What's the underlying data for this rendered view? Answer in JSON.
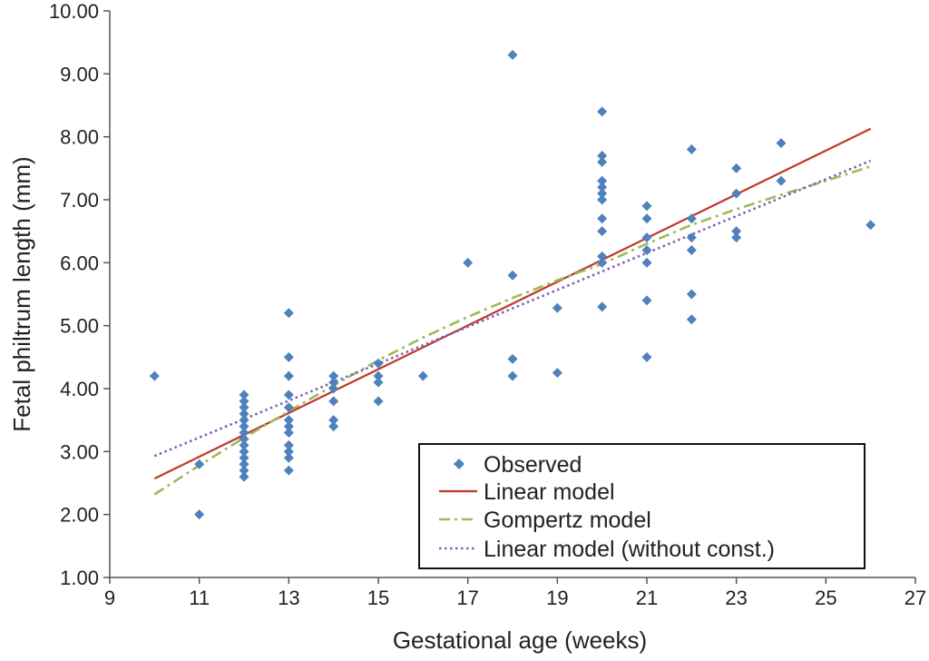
{
  "chart_data": {
    "type": "scatter",
    "xlabel": "Gestational age (weeks)",
    "ylabel": "Fetal philtrum length (mm)",
    "xlim": [
      9,
      27
    ],
    "ylim": [
      1.0,
      10.0
    ],
    "x_ticks": [
      "9",
      "11",
      "13",
      "15",
      "17",
      "19",
      "21",
      "23",
      "25",
      "27"
    ],
    "y_ticks": [
      "1.00",
      "2.00",
      "3.00",
      "4.00",
      "5.00",
      "6.00",
      "7.00",
      "8.00",
      "9.00",
      "10.00"
    ],
    "grid": false,
    "legend_position": "bottom-right",
    "colors": {
      "observed": "#4f81bd",
      "linear": "#c0392b",
      "gompertz": "#9bbb59",
      "linear_no_const": "#7f62b3"
    },
    "series": [
      {
        "name": "Observed",
        "kind": "points",
        "points": [
          [
            10,
            4.2
          ],
          [
            11,
            2.8
          ],
          [
            11,
            2.0
          ],
          [
            12,
            3.9
          ],
          [
            12,
            3.8
          ],
          [
            12,
            3.7
          ],
          [
            12,
            3.6
          ],
          [
            12,
            3.5
          ],
          [
            12,
            3.4
          ],
          [
            12,
            3.3
          ],
          [
            12,
            3.2
          ],
          [
            12,
            3.1
          ],
          [
            12,
            3.0
          ],
          [
            12,
            2.9
          ],
          [
            12,
            2.8
          ],
          [
            12,
            2.7
          ],
          [
            12,
            2.6
          ],
          [
            13,
            5.2
          ],
          [
            13,
            4.5
          ],
          [
            13,
            4.2
          ],
          [
            13,
            3.9
          ],
          [
            13,
            3.7
          ],
          [
            13,
            3.5
          ],
          [
            13,
            3.4
          ],
          [
            13,
            3.3
          ],
          [
            13,
            3.1
          ],
          [
            13,
            3.0
          ],
          [
            13,
            2.9
          ],
          [
            13,
            2.7
          ],
          [
            14,
            4.2
          ],
          [
            14,
            4.1
          ],
          [
            14,
            4.0
          ],
          [
            14,
            3.8
          ],
          [
            14,
            3.5
          ],
          [
            14,
            3.4
          ],
          [
            15,
            4.4
          ],
          [
            15,
            4.2
          ],
          [
            15,
            4.1
          ],
          [
            15,
            3.8
          ],
          [
            16,
            4.2
          ],
          [
            17,
            6.0
          ],
          [
            18,
            9.3
          ],
          [
            18,
            5.8
          ],
          [
            18,
            4.47
          ],
          [
            18,
            4.2
          ],
          [
            19,
            5.28
          ],
          [
            19,
            4.25
          ],
          [
            20,
            8.4
          ],
          [
            20,
            7.7
          ],
          [
            20,
            7.6
          ],
          [
            20,
            7.3
          ],
          [
            20,
            7.2
          ],
          [
            20,
            7.1
          ],
          [
            20,
            7.0
          ],
          [
            20,
            6.7
          ],
          [
            20,
            6.5
          ],
          [
            20,
            6.1
          ],
          [
            20,
            6.0
          ],
          [
            20,
            5.3
          ],
          [
            21,
            6.9
          ],
          [
            21,
            6.7
          ],
          [
            21,
            6.4
          ],
          [
            21,
            6.2
          ],
          [
            21,
            6.0
          ],
          [
            21,
            5.4
          ],
          [
            21,
            4.5
          ],
          [
            22,
            7.8
          ],
          [
            22,
            6.7
          ],
          [
            22,
            6.4
          ],
          [
            22,
            6.2
          ],
          [
            22,
            5.5
          ],
          [
            22,
            5.1
          ],
          [
            23,
            7.5
          ],
          [
            23,
            7.1
          ],
          [
            23,
            6.5
          ],
          [
            23,
            6.4
          ],
          [
            24,
            7.9
          ],
          [
            24,
            7.3
          ],
          [
            26,
            6.6
          ]
        ]
      },
      {
        "name": "Linear model",
        "kind": "line",
        "style": "solid",
        "points": [
          [
            10,
            2.57
          ],
          [
            26,
            8.13
          ]
        ]
      },
      {
        "name": "Gompertz model",
        "kind": "line",
        "style": "dashdot",
        "points": [
          [
            10,
            2.32
          ],
          [
            11,
            2.78
          ],
          [
            12,
            3.22
          ],
          [
            13,
            3.64
          ],
          [
            14,
            4.05
          ],
          [
            15,
            4.45
          ],
          [
            16,
            4.81
          ],
          [
            17,
            5.14
          ],
          [
            18,
            5.44
          ],
          [
            19,
            5.72
          ],
          [
            20,
            5.98
          ],
          [
            21,
            6.3
          ],
          [
            22,
            6.6
          ],
          [
            23,
            6.85
          ],
          [
            24,
            7.08
          ],
          [
            25,
            7.3
          ],
          [
            26,
            7.53
          ]
        ]
      },
      {
        "name": "Linear model (without const.)",
        "kind": "line",
        "style": "dotted",
        "points": [
          [
            10,
            2.93
          ],
          [
            26,
            7.62
          ]
        ]
      }
    ]
  }
}
